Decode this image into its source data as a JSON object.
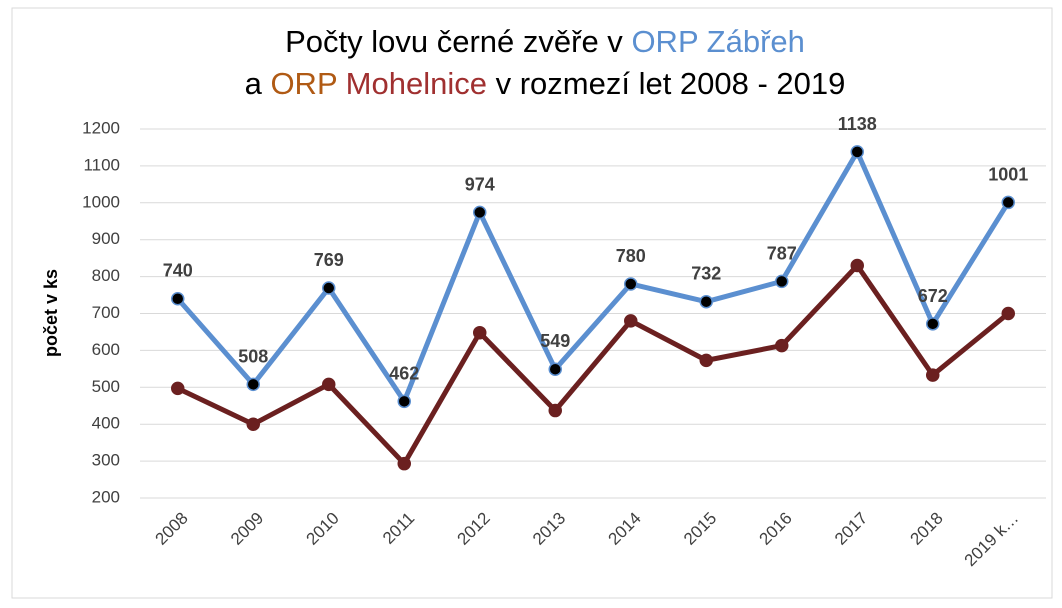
{
  "chart_data": {
    "type": "line",
    "title_lines": [
      [
        {
          "text": "Počty lovu černé zvěře v ",
          "color": "#000000"
        },
        {
          "text": "ORP Zábřeh",
          "color": "#5b8fd0"
        }
      ],
      [
        {
          "text": "a ",
          "color": "#000000"
        },
        {
          "text": "ORP",
          "color": "#b05a14"
        },
        {
          "text": " Mohelnice",
          "color": "#a03030"
        },
        {
          "text": " v rozmezí let 2008 - 2019",
          "color": "#000000"
        }
      ]
    ],
    "y_label": "počet v ks",
    "categories": [
      "2008",
      "2009",
      "2010",
      "2011",
      "2012",
      "2013",
      "2014",
      "2015",
      "2016",
      "2017",
      "2018",
      "2019 k…"
    ],
    "series": [
      {
        "color": "#5b8fd0",
        "marker_color": "#000000",
        "show_labels": true,
        "values": [
          740,
          508,
          769,
          462,
          974,
          549,
          780,
          732,
          787,
          1138,
          672,
          1001
        ]
      },
      {
        "color": "#6b2020",
        "marker_color": "#6b2020",
        "show_labels": false,
        "values": [
          497,
          400,
          508,
          293,
          648,
          437,
          680,
          573,
          613,
          830,
          533,
          700
        ]
      }
    ],
    "ylim": [
      200,
      1200
    ],
    "yticks": [
      200,
      300,
      400,
      500,
      600,
      700,
      800,
      900,
      1000,
      1100,
      1200
    ],
    "grid": true
  }
}
